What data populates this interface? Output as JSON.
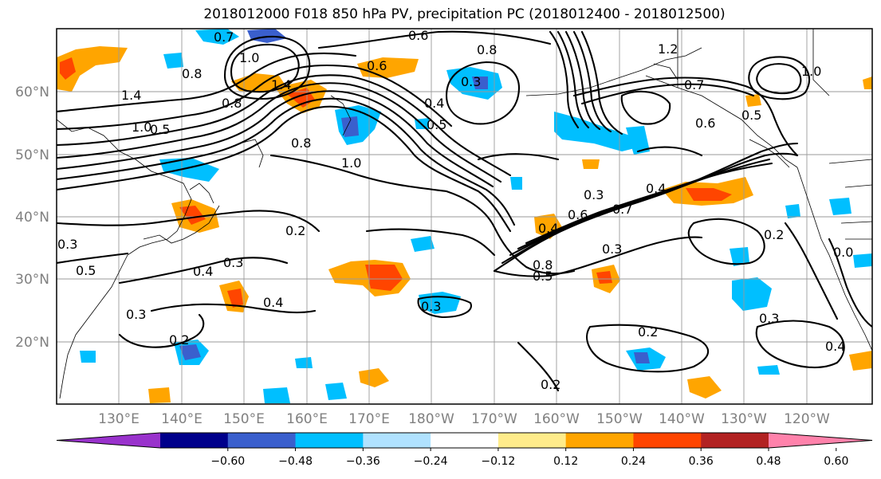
{
  "title": "2018012000 F018 850 hPa PV, precipitation PC (2018012400 - 2018012500)",
  "lat_labels": [
    "60°N",
    "50°N",
    "40°N",
    "30°N",
    "20°N"
  ],
  "lon_labels": [
    "130°E",
    "140°E",
    "150°E",
    "160°E",
    "170°E",
    "180°W",
    "170°W",
    "160°W",
    "150°W",
    "140°W",
    "130°W",
    "120°W"
  ],
  "contour_labels": [
    "0.7",
    "0.8",
    "1.0",
    "1.4",
    "1.0",
    "0.8",
    "0.6",
    "0.6",
    "1.4",
    "0.3",
    "0.4",
    "0.5",
    "0.8",
    "1.0",
    "1.2",
    "0.7",
    "0.6",
    "0.5",
    "1.0",
    "0.3",
    "0.4",
    "0.6",
    "0.7",
    "0.4",
    "0.3",
    "0.8",
    "0.5",
    "0.2",
    "0.2",
    "0.3",
    "0.4",
    "0.3",
    "0.4",
    "0.2",
    "0.3",
    "0.2",
    "0.2",
    "0.3",
    "0.4",
    "0.8",
    "0.5",
    "0.3",
    "0.5",
    "0.0"
  ],
  "colorbar": {
    "ticks": [
      "−0.60",
      "−0.48",
      "−0.36",
      "−0.24",
      "−0.12",
      "0.12",
      "0.24",
      "0.36",
      "0.48",
      "0.60"
    ],
    "colors": [
      "#9932cc",
      "#00008b",
      "#3a5fcd",
      "#00bfff",
      "#b0e2ff",
      "#ffffff",
      "#ffec8b",
      "#ffa500",
      "#ff4500",
      "#b22222",
      "#ff82ab"
    ]
  }
}
